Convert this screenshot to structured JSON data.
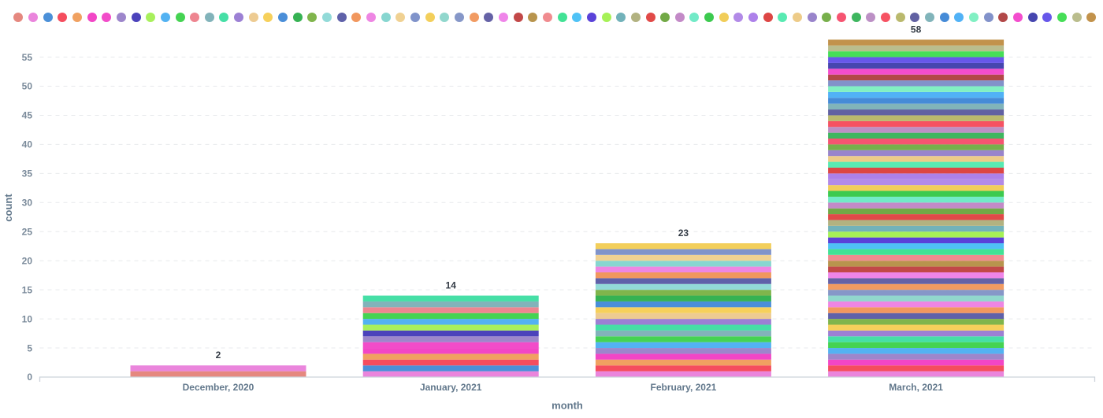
{
  "chart_data": {
    "type": "bar",
    "stacked": true,
    "title": "",
    "xlabel": "month",
    "ylabel": "count",
    "categories": [
      "December, 2020",
      "January, 2021",
      "February, 2021",
      "March, 2021"
    ],
    "totals": [
      2,
      14,
      23,
      58
    ],
    "yticks": [
      0,
      5,
      10,
      15,
      20,
      25,
      30,
      35,
      40,
      45,
      50,
      55
    ],
    "ylim": [
      0,
      58
    ],
    "grid": "dashed-horizontal",
    "legend_position": "top",
    "legend_marker": "circle",
    "series": [
      {
        "color": "#e5887f",
        "values": [
          1,
          0,
          0,
          0
        ]
      },
      {
        "color": "#ea85dc",
        "values": [
          1,
          1,
          1,
          1
        ]
      },
      {
        "color": "#4b90d8",
        "values": [
          0,
          1,
          0,
          0
        ]
      },
      {
        "color": "#f54d5e",
        "values": [
          0,
          1,
          1,
          1
        ]
      },
      {
        "color": "#f0a161",
        "values": [
          0,
          1,
          1,
          0
        ]
      },
      {
        "color": "#f246c6",
        "values": [
          0,
          1,
          1,
          1
        ]
      },
      {
        "color": "#f24cc9",
        "values": [
          0,
          1,
          0,
          0
        ]
      },
      {
        "color": "#9d86cb",
        "values": [
          0,
          1,
          1,
          1
        ]
      },
      {
        "color": "#4b42bb",
        "values": [
          0,
          1,
          0,
          0
        ]
      },
      {
        "color": "#a8f05c",
        "values": [
          0,
          1,
          0,
          0
        ]
      },
      {
        "color": "#53b2f2",
        "values": [
          0,
          1,
          1,
          1
        ]
      },
      {
        "color": "#45d352",
        "values": [
          0,
          1,
          1,
          1
        ]
      },
      {
        "color": "#ee8590",
        "values": [
          0,
          1,
          0,
          0
        ]
      },
      {
        "color": "#82b3ba",
        "values": [
          0,
          1,
          1,
          0
        ]
      },
      {
        "color": "#46dfa6",
        "values": [
          0,
          1,
          1,
          1
        ]
      },
      {
        "color": "#9c80d4",
        "values": [
          0,
          0,
          1,
          1
        ]
      },
      {
        "color": "#edcb92",
        "values": [
          0,
          0,
          1,
          0
        ]
      },
      {
        "color": "#f6d05b",
        "values": [
          0,
          0,
          1,
          1
        ]
      },
      {
        "color": "#4a8ed8",
        "values": [
          0,
          0,
          1,
          0
        ]
      },
      {
        "color": "#36b253",
        "values": [
          0,
          0,
          1,
          0
        ]
      },
      {
        "color": "#80b54c",
        "values": [
          0,
          0,
          1,
          1
        ]
      },
      {
        "color": "#92dad8",
        "values": [
          0,
          0,
          1,
          0
        ]
      },
      {
        "color": "#5f61a9",
        "values": [
          0,
          0,
          1,
          1
        ]
      },
      {
        "color": "#f1975e",
        "values": [
          0,
          0,
          1,
          1
        ]
      },
      {
        "color": "#ee86e3",
        "values": [
          0,
          0,
          1,
          1
        ]
      },
      {
        "color": "#87d6d0",
        "values": [
          0,
          0,
          1,
          0
        ]
      },
      {
        "color": "#f0d192",
        "values": [
          0,
          0,
          1,
          0
        ]
      },
      {
        "color": "#8093ca",
        "values": [
          0,
          0,
          1,
          0
        ]
      },
      {
        "color": "#f3cf5b",
        "values": [
          0,
          0,
          1,
          0
        ]
      },
      {
        "color": "#91d7cd",
        "values": [
          0,
          0,
          0,
          1
        ]
      },
      {
        "color": "#8697c8",
        "values": [
          0,
          0,
          0,
          1
        ]
      },
      {
        "color": "#f19b62",
        "values": [
          0,
          0,
          0,
          1
        ]
      },
      {
        "color": "#6562a6",
        "values": [
          0,
          0,
          0,
          1
        ]
      },
      {
        "color": "#ef85e9",
        "values": [
          0,
          0,
          0,
          1
        ]
      },
      {
        "color": "#c24848",
        "values": [
          0,
          0,
          0,
          1
        ]
      },
      {
        "color": "#b8944d",
        "values": [
          0,
          0,
          0,
          1
        ]
      },
      {
        "color": "#f08b8f",
        "values": [
          0,
          0,
          0,
          1
        ]
      },
      {
        "color": "#42e295",
        "values": [
          0,
          0,
          0,
          1
        ]
      },
      {
        "color": "#4fc2f6",
        "values": [
          0,
          0,
          0,
          1
        ]
      },
      {
        "color": "#5a42d9",
        "values": [
          0,
          0,
          0,
          1
        ]
      },
      {
        "color": "#a6f157",
        "values": [
          0,
          0,
          0,
          1
        ]
      },
      {
        "color": "#72b2ba",
        "values": [
          0,
          0,
          0,
          1
        ]
      },
      {
        "color": "#b2b281",
        "values": [
          0,
          0,
          0,
          1
        ]
      },
      {
        "color": "#e14a48",
        "values": [
          0,
          0,
          0,
          1
        ]
      },
      {
        "color": "#72a946",
        "values": [
          0,
          0,
          0,
          1
        ]
      },
      {
        "color": "#c38ac7",
        "values": [
          0,
          0,
          0,
          1
        ]
      },
      {
        "color": "#72eac7",
        "values": [
          0,
          0,
          0,
          1
        ]
      },
      {
        "color": "#3cca4f",
        "values": [
          0,
          0,
          0,
          1
        ]
      },
      {
        "color": "#f1cd59",
        "values": [
          0,
          0,
          0,
          1
        ]
      },
      {
        "color": "#b28ae7",
        "values": [
          0,
          0,
          0,
          1
        ]
      },
      {
        "color": "#ad81ea",
        "values": [
          0,
          0,
          0,
          1
        ]
      },
      {
        "color": "#dd4644",
        "values": [
          0,
          0,
          0,
          1
        ]
      },
      {
        "color": "#58eab2",
        "values": [
          0,
          0,
          0,
          1
        ]
      },
      {
        "color": "#edcb88",
        "values": [
          0,
          0,
          0,
          1
        ]
      },
      {
        "color": "#9984cb",
        "values": [
          0,
          0,
          0,
          1
        ]
      },
      {
        "color": "#77af4b",
        "values": [
          0,
          0,
          0,
          1
        ]
      },
      {
        "color": "#f65471",
        "values": [
          0,
          0,
          0,
          1
        ]
      },
      {
        "color": "#3eb65f",
        "values": [
          0,
          0,
          0,
          1
        ]
      },
      {
        "color": "#bc90c5",
        "values": [
          0,
          0,
          0,
          1
        ]
      },
      {
        "color": "#f65262",
        "values": [
          0,
          0,
          0,
          1
        ]
      },
      {
        "color": "#bab96d",
        "values": [
          0,
          0,
          0,
          1
        ]
      },
      {
        "color": "#6161a2",
        "values": [
          0,
          0,
          0,
          1
        ]
      },
      {
        "color": "#81b4ba",
        "values": [
          0,
          0,
          0,
          1
        ]
      },
      {
        "color": "#468bd7",
        "values": [
          0,
          0,
          0,
          1
        ]
      },
      {
        "color": "#51b2f6",
        "values": [
          0,
          0,
          0,
          1
        ]
      },
      {
        "color": "#81f0c3",
        "values": [
          0,
          0,
          0,
          1
        ]
      },
      {
        "color": "#8292ca",
        "values": [
          0,
          0,
          0,
          1
        ]
      },
      {
        "color": "#b24848",
        "values": [
          0,
          0,
          0,
          1
        ]
      },
      {
        "color": "#f34dcd",
        "values": [
          0,
          0,
          0,
          1
        ]
      },
      {
        "color": "#4646af",
        "values": [
          0,
          0,
          0,
          1
        ]
      },
      {
        "color": "#6757ea",
        "values": [
          0,
          0,
          0,
          1
        ]
      },
      {
        "color": "#46de57",
        "values": [
          0,
          0,
          0,
          1
        ]
      },
      {
        "color": "#babd8d",
        "values": [
          0,
          0,
          0,
          1
        ]
      },
      {
        "color": "#c2924b",
        "values": [
          0,
          0,
          0,
          1
        ]
      }
    ]
  },
  "palette": {
    "background": "#ffffff",
    "axis_line": "#ccd3da",
    "gridline": "#e7e9ec",
    "y_tick_text": "#7a8a9a",
    "x_tick_text": "#61778b",
    "axis_title_text": "#61778b",
    "value_label_text": "#333b45"
  }
}
